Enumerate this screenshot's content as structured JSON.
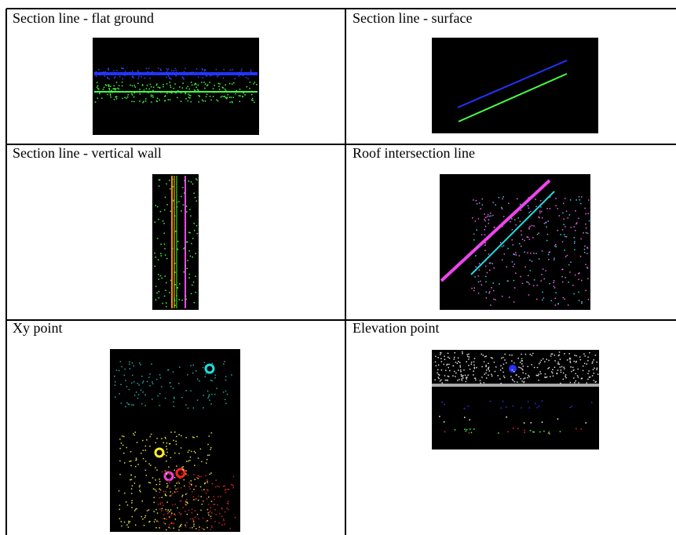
{
  "table": {
    "cells": [
      {
        "label": "Section line - flat ground"
      },
      {
        "label": "Section line - surface"
      },
      {
        "label": "Section line - vertical wall"
      },
      {
        "label": "Roof intersection line"
      },
      {
        "label": "Xy point"
      },
      {
        "label": "Elevation point"
      }
    ]
  }
}
